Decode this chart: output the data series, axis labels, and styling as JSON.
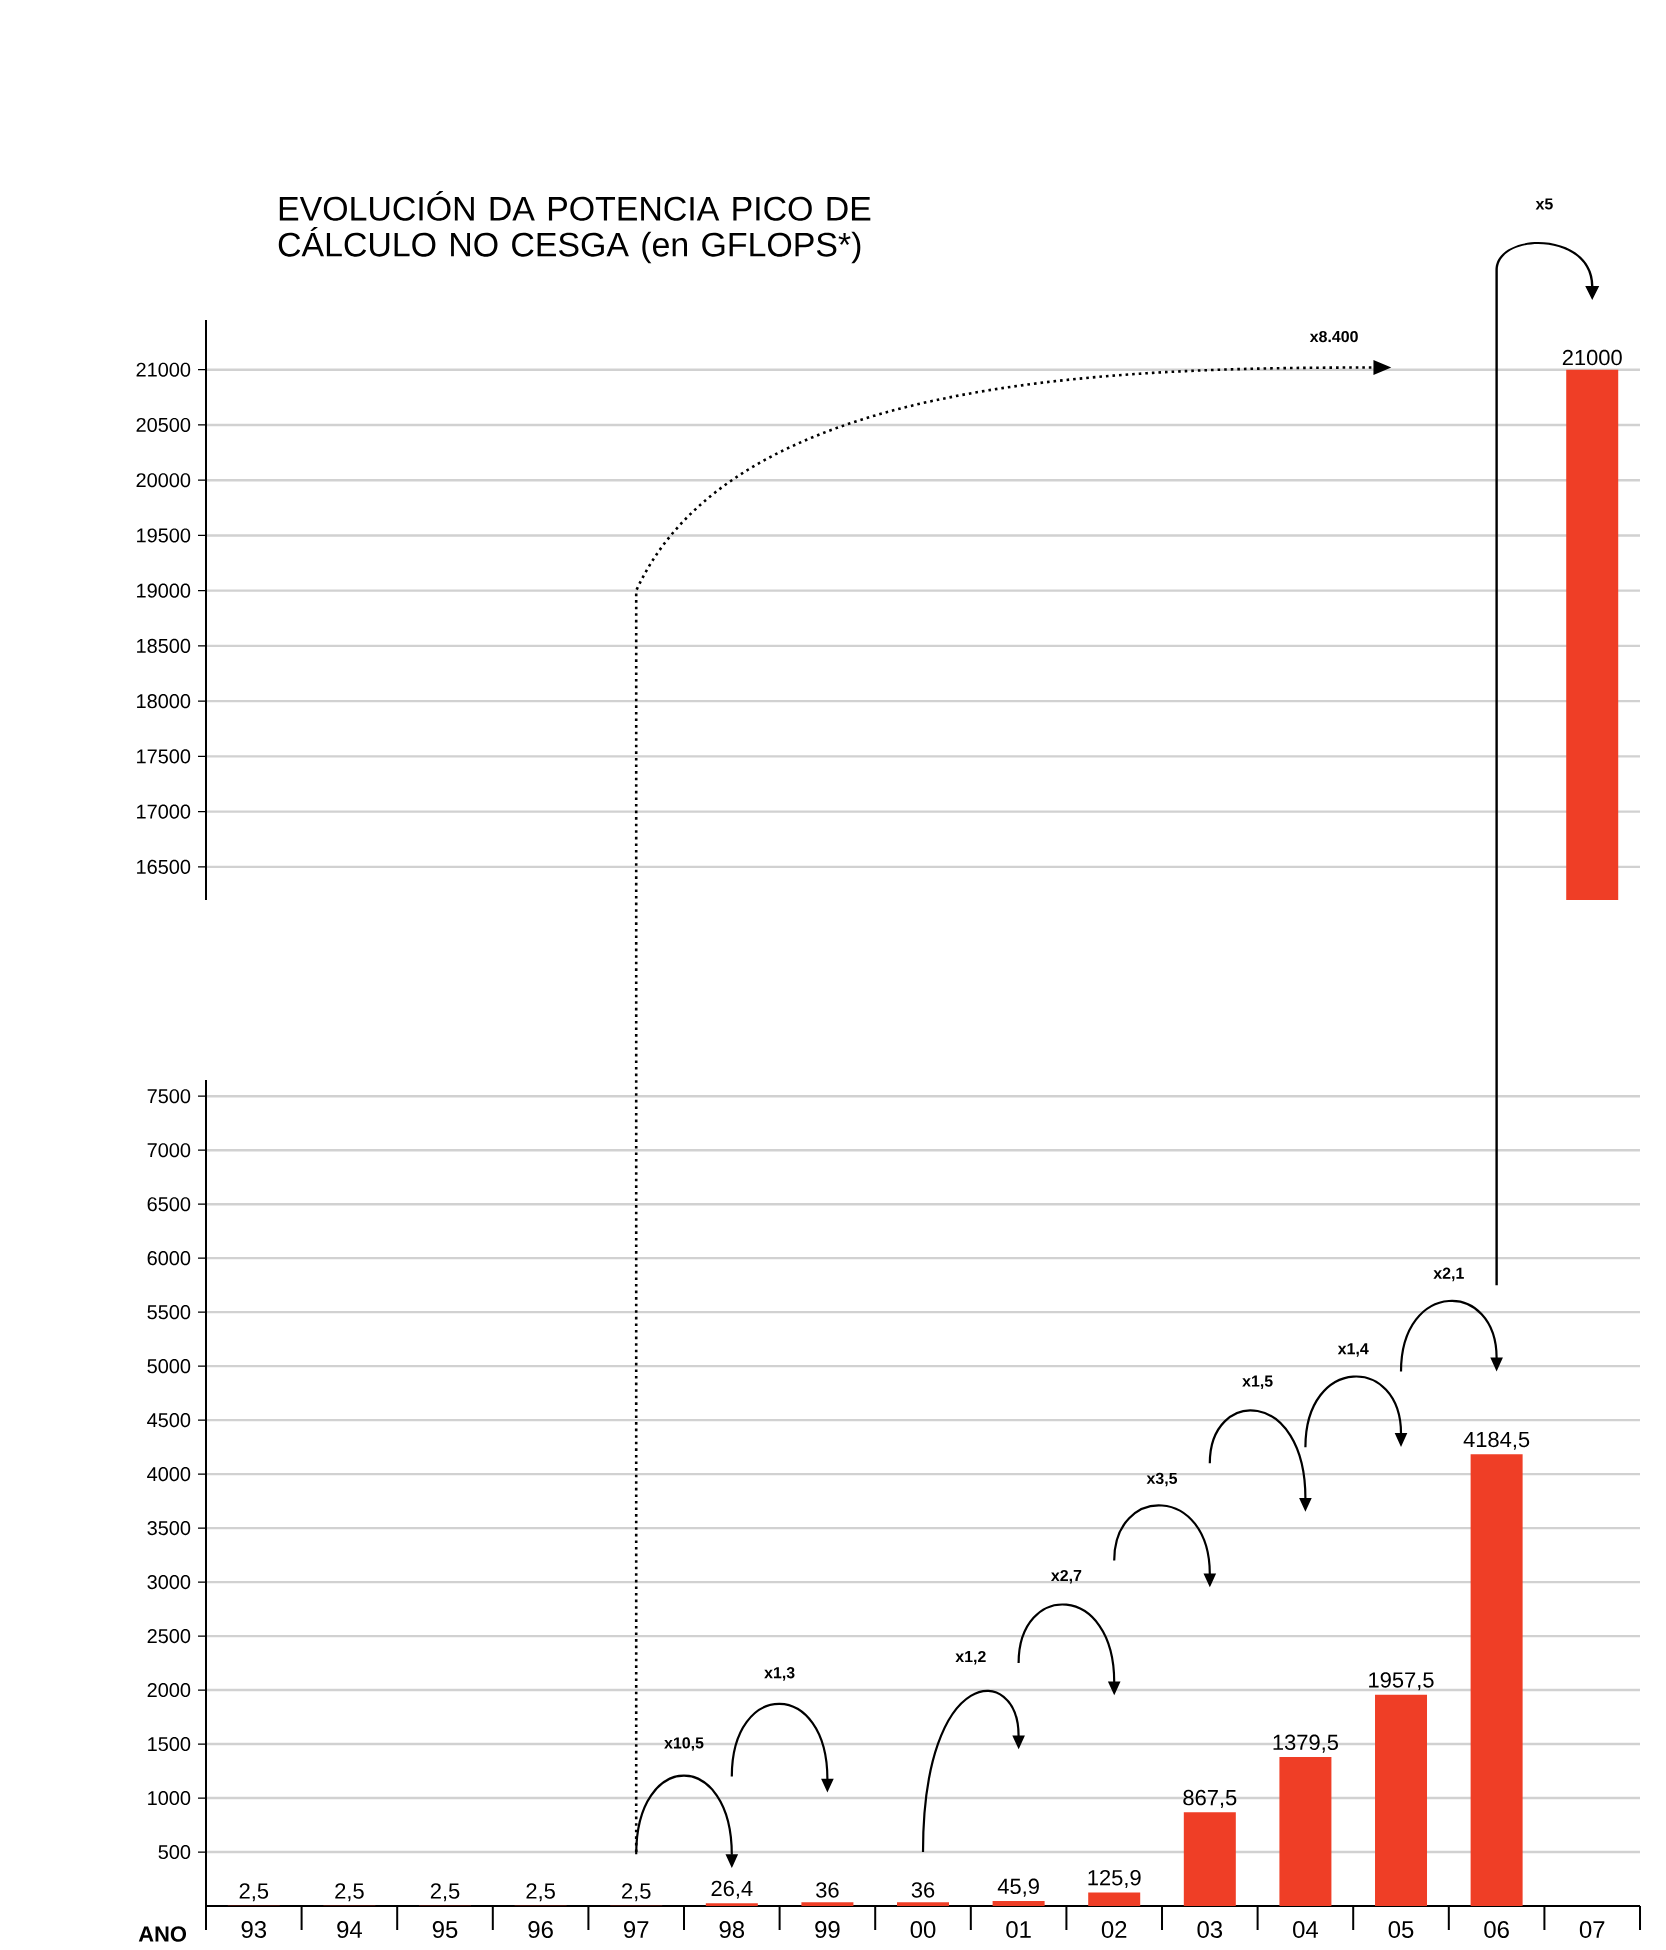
{
  "chart_data": [
    {
      "type": "bar",
      "title": "EVOLUCIÓN DA POTENCIA PICO DE CÁLCULO NO CESGA (en GFLOPS*)",
      "categories": [
        "93",
        "94",
        "95",
        "96",
        "97",
        "98",
        "99",
        "00",
        "01",
        "02",
        "03",
        "04",
        "05",
        "06",
        "07"
      ],
      "values": [
        null,
        null,
        null,
        null,
        null,
        null,
        null,
        null,
        null,
        null,
        null,
        null,
        null,
        null,
        21000
      ],
      "value_labels": [
        null,
        null,
        null,
        null,
        null,
        null,
        null,
        null,
        null,
        null,
        null,
        null,
        null,
        null,
        "21000"
      ],
      "color": "#ef3e26",
      "ylim": [
        16200,
        21450
      ],
      "yticks": [
        16500,
        17000,
        17500,
        18000,
        18500,
        19000,
        19500,
        20000,
        20500,
        21000
      ],
      "grid": "y",
      "tick_labels": "y",
      "annotations": [
        "x5",
        "x8.400"
      ]
    },
    {
      "type": "bar",
      "xlabel": "ANO",
      "categories": [
        "93",
        "94",
        "95",
        "96",
        "97",
        "98",
        "99",
        "00",
        "01",
        "02",
        "03",
        "04",
        "05",
        "06",
        "07"
      ],
      "values": [
        2.5,
        2.5,
        2.5,
        2.5,
        2.5,
        26.4,
        36,
        36,
        45.9,
        125.9,
        867.5,
        1379.5,
        1957.5,
        4184.5,
        null
      ],
      "value_labels": [
        "2,5",
        "2,5",
        "2,5",
        "2,5",
        "2,5",
        "26,4",
        "36",
        "36",
        "45,9",
        "125,9",
        "867,5",
        "1379,5",
        "1957,5",
        "4184,5",
        null
      ],
      "color": "#ef3e26",
      "ylim": [
        0,
        7650
      ],
      "yticks": [
        500,
        1000,
        1500,
        2000,
        2500,
        3000,
        3500,
        4000,
        4500,
        5000,
        5500,
        6000,
        6500,
        7000,
        7500
      ],
      "grid": "y",
      "annotations": [
        "x10,5",
        "x1,3",
        "x1,2",
        "x2,7",
        "x3,5",
        "x1,5",
        "x1,4",
        "x2,1"
      ]
    }
  ]
}
